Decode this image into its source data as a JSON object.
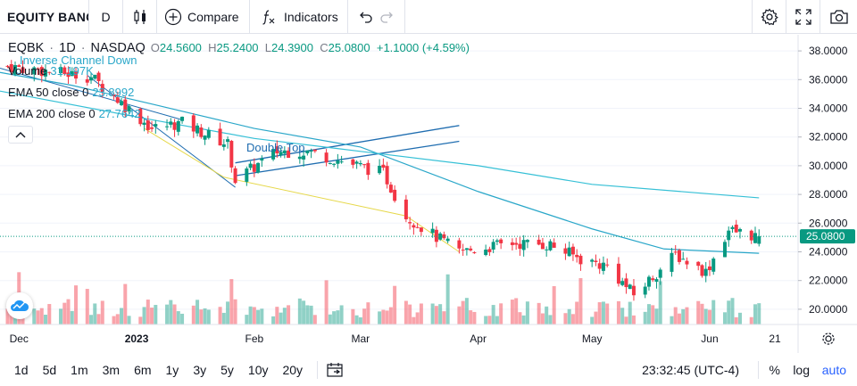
{
  "toolbar": {
    "symbol": "EQUITY BANCSHARES",
    "interval": "D",
    "compare_label": "Compare",
    "indicators_label": "Indicators",
    "icons": [
      "candles-icon",
      "plus-circle-icon",
      "fx-icon",
      "undo-icon",
      "redo-icon",
      "gear-icon",
      "fullscreen-icon",
      "camera-icon"
    ]
  },
  "legend": {
    "ticker": "EQBK",
    "interval": "1D",
    "exchange": "NASDAQ",
    "o_label": "O",
    "o": "24.5600",
    "h_label": "H",
    "h": "25.2400",
    "l_label": "L",
    "l": "24.3900",
    "c_label": "C",
    "c": "25.0800",
    "change": "+1.1000 (+4.59%)",
    "volume_label": "Volume",
    "volume": "31.197K",
    "ema50_label": "EMA 50 close 0",
    "ema50": "23.8992",
    "ema200_label": "EMA 200 close 0",
    "ema200": "27.7642"
  },
  "annotations": {
    "channel": "Inverse Channel Down",
    "double_top": "Double Top"
  },
  "price_axis": {
    "ticks": [
      "38.0000",
      "36.0000",
      "34.0000",
      "32.0000",
      "30.0000",
      "28.0000",
      "26.0000",
      "24.0000",
      "22.0000",
      "20.0000"
    ],
    "last_price": "25.0800"
  },
  "time_axis": {
    "ticks": [
      "Dec",
      "2023",
      "Feb",
      "Mar",
      "Apr",
      "May",
      "Jun",
      "21"
    ]
  },
  "bottombar": {
    "ranges": [
      "1d",
      "5d",
      "1m",
      "3m",
      "6m",
      "1y",
      "3y",
      "5y",
      "10y",
      "20y"
    ],
    "time": "23:32:45 (UTC-4)",
    "percent": "%",
    "log": "log",
    "auto": "auto"
  },
  "colors": {
    "up": "#089981",
    "down": "#f23645",
    "ema50": "#2aa7c9",
    "ema200": "#36c0d6",
    "accent": "#2962ff",
    "pattern": "#1f6db0"
  },
  "chart_data": {
    "type": "candlestick",
    "x_range": [
      "2022-11-26",
      "2023-06-21"
    ],
    "ylim": [
      19.0,
      39.0
    ],
    "series": [
      {
        "name": "price_keyframes",
        "dates": [
          "2022-11-26",
          "2022-12-20",
          "2023-01-05",
          "2023-01-13",
          "2023-01-25",
          "2023-01-27",
          "2023-02-07",
          "2023-02-15",
          "2023-03-07",
          "2023-03-13",
          "2023-03-20",
          "2023-03-27",
          "2023-04-10",
          "2023-04-20",
          "2023-04-28",
          "2023-05-05",
          "2023-05-12",
          "2023-05-23",
          "2023-05-31",
          "2023-06-06",
          "2023-06-14"
        ],
        "close": [
          37.0,
          36.2,
          32.6,
          33.0,
          31.5,
          29.0,
          31.0,
          31.0,
          29.5,
          26.5,
          25.2,
          24.0,
          24.6,
          24.5,
          23.5,
          23.0,
          21.0,
          23.8,
          22.6,
          25.5,
          25.08
        ]
      },
      {
        "name": "EMA 50 close 0",
        "dates": [
          "2022-11-26",
          "2022-12-15",
          "2023-01-05",
          "2023-02-01",
          "2023-03-01",
          "2023-04-01",
          "2023-05-01",
          "2023-05-20",
          "2023-06-14"
        ],
        "values": [
          36.5,
          35.6,
          34.3,
          32.6,
          31.3,
          28.2,
          25.6,
          24.2,
          23.9
        ]
      },
      {
        "name": "EMA 200 close 0",
        "dates": [
          "2022-11-26",
          "2023-01-01",
          "2023-02-01",
          "2023-03-01",
          "2023-04-01",
          "2023-05-01",
          "2023-06-14"
        ],
        "values": [
          35.2,
          33.4,
          31.9,
          31.0,
          30.0,
          28.7,
          27.76
        ]
      }
    ]
  }
}
